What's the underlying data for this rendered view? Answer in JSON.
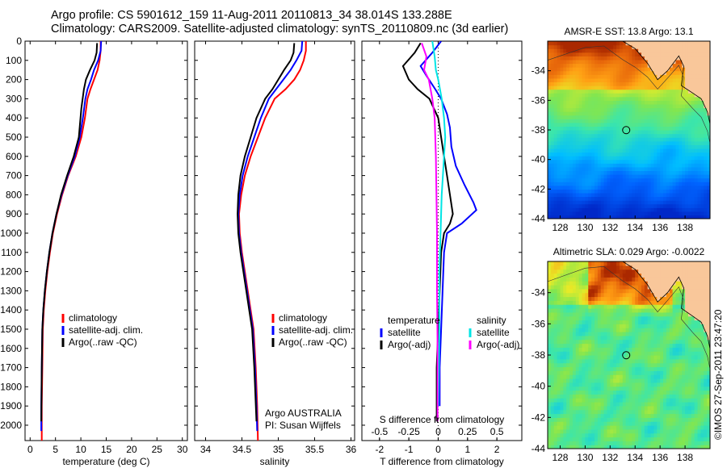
{
  "header": {
    "line1": "Argo profile: CS 5901612_159 11-Aug-2011 20110813_34 38.014S 133.288E",
    "line2": "Climatology: CARS2009. Satellite-adjusted climatology: synTS_20110809.nc (3d earlier)"
  },
  "side_text": "©IMOS 27-Sep-2011 23:47:20",
  "colors": {
    "climatology": "#ff0000",
    "satellite": "#0000ff",
    "argo": "#000000",
    "satellite_salinity": "#00e5e5",
    "argo_salinity": "#ff00ff"
  },
  "chart_data": [
    {
      "type": "line",
      "xlabel": "temperature (deg C)",
      "ylabel": "",
      "xlim": [
        -1,
        31
      ],
      "ylim": [
        2080,
        0
      ],
      "xticks": [
        0,
        5,
        10,
        15,
        20,
        25,
        30
      ],
      "yticks": [
        0,
        100,
        200,
        300,
        400,
        500,
        600,
        700,
        800,
        900,
        1000,
        1100,
        1200,
        1300,
        1400,
        1500,
        1600,
        1700,
        1800,
        1900,
        2000
      ],
      "legend": {
        "position": "lower-middle",
        "entries": [
          "climatology",
          "satellite-adj. clim.",
          "Argo(..raw -QC)"
        ]
      },
      "series": [
        {
          "name": "climatology",
          "x": [
            13.9,
            13.9,
            13.7,
            13.3,
            12.6,
            11.9,
            11.3,
            10.8,
            10.1,
            9.0,
            7.5,
            6.3,
            5.3,
            4.5,
            3.9,
            3.4,
            3.0,
            2.7,
            2.5,
            2.4,
            2.3,
            2.3
          ],
          "y": [
            0,
            50,
            100,
            150,
            200,
            250,
            300,
            400,
            500,
            600,
            700,
            800,
            900,
            1000,
            1100,
            1200,
            1300,
            1400,
            1500,
            1700,
            1900,
            2080
          ]
        },
        {
          "name": "satellite-adj. clim.",
          "x": [
            14.0,
            13.9,
            13.4,
            12.6,
            12.0,
            11.3,
            10.9,
            10.4,
            9.8,
            8.8,
            7.4,
            6.2,
            5.2,
            4.4,
            3.8,
            3.3,
            2.9,
            2.6,
            2.4,
            2.3,
            2.2,
            2.2
          ],
          "y": [
            0,
            50,
            100,
            150,
            200,
            250,
            300,
            400,
            500,
            600,
            700,
            800,
            900,
            1000,
            1100,
            1200,
            1300,
            1400,
            1500,
            1700,
            1900,
            2030
          ]
        },
        {
          "name": "Argo(..raw -QC)",
          "x": [
            13.2,
            13.1,
            12.7,
            11.8,
            11.0,
            10.6,
            10.1,
            9.6,
            8.6,
            7.3,
            6.1,
            5.2,
            4.4,
            3.8,
            3.3,
            2.9,
            2.6,
            2.4,
            2.3,
            2.2
          ],
          "y": [
            10,
            60,
            100,
            150,
            200,
            250,
            350,
            500,
            600,
            700,
            800,
            900,
            1000,
            1100,
            1200,
            1300,
            1400,
            1500,
            1700,
            1980
          ]
        }
      ]
    },
    {
      "type": "line",
      "xlabel": "salinity",
      "ylabel": "",
      "xlim": [
        33.85,
        36.05
      ],
      "ylim": [
        2080,
        0
      ],
      "xticks": [
        34,
        34.5,
        35,
        35.5,
        36
      ],
      "legend": {
        "position": "lower-middle",
        "entries": [
          "climatology",
          "satellite-adj. clim.",
          "Argo(..raw -QC)"
        ]
      },
      "annotation": [
        "Argo AUSTRALIA",
        "PI: Susan Wijffels"
      ],
      "series": [
        {
          "name": "climatology",
          "x": [
            35.38,
            35.38,
            35.35,
            35.3,
            35.22,
            35.1,
            34.95,
            34.82,
            34.72,
            34.62,
            34.54,
            34.49,
            34.46,
            34.47,
            34.5,
            34.54,
            34.58,
            34.62,
            34.66,
            34.69,
            34.71,
            34.72
          ],
          "y": [
            0,
            50,
            100,
            150,
            200,
            250,
            300,
            400,
            500,
            600,
            700,
            800,
            900,
            1000,
            1100,
            1200,
            1300,
            1400,
            1500,
            1700,
            1900,
            2080
          ]
        },
        {
          "name": "satellite-adj. clim.",
          "x": [
            35.33,
            35.32,
            35.25,
            35.17,
            35.07,
            34.97,
            34.87,
            34.76,
            34.67,
            34.58,
            34.51,
            34.47,
            34.45,
            34.46,
            34.49,
            34.53,
            34.57,
            34.61,
            34.65,
            34.68,
            34.7,
            34.71
          ],
          "y": [
            0,
            50,
            100,
            150,
            200,
            250,
            300,
            400,
            500,
            600,
            700,
            800,
            900,
            1000,
            1100,
            1200,
            1300,
            1400,
            1500,
            1700,
            1900,
            2030
          ]
        },
        {
          "name": "Argo(..raw -QC)",
          "x": [
            35.22,
            35.21,
            35.17,
            35.08,
            35.0,
            34.92,
            34.82,
            34.7,
            34.62,
            34.54,
            34.48,
            34.45,
            34.44,
            34.45,
            34.48,
            34.52,
            34.56,
            34.6,
            34.64,
            34.67,
            34.7
          ],
          "y": [
            10,
            60,
            100,
            150,
            200,
            250,
            300,
            400,
            500,
            600,
            700,
            800,
            900,
            1000,
            1100,
            1200,
            1300,
            1400,
            1500,
            1700,
            1980
          ]
        }
      ]
    },
    {
      "type": "line",
      "xlabel": "T difference from climatology",
      "x2label": "S difference from climatology",
      "ylabel": "",
      "xlim": [
        -2.6,
        2.85
      ],
      "x2lim": [
        -0.65,
        0.7125
      ],
      "ylim": [
        2080,
        0
      ],
      "xticks": [
        -2,
        -1,
        0,
        1,
        2
      ],
      "x2ticks": [
        -0.5,
        -0.25,
        0,
        0.25,
        0.5
      ],
      "x2ticklabels": [
        "-0.5",
        "-0.25",
        "0",
        "0.25",
        "0.5"
      ],
      "legend": {
        "position": "lower",
        "groups": [
          {
            "title": "temperature",
            "entries": [
              "satellite",
              "Argo(-adj)"
            ]
          },
          {
            "title": "salinity",
            "entries": [
              "satellite",
              "Argo(-adj)"
            ]
          }
        ]
      },
      "series": [
        {
          "name": "temperature satellite",
          "x": [
            0.1,
            -0.2,
            -0.6,
            -0.4,
            -0.1,
            0.1,
            0.3,
            0.4,
            0.45,
            0.6,
            0.9,
            1.2,
            1.3,
            0.8,
            0.3,
            0.2,
            0.15,
            0.1,
            0.05,
            0.05
          ],
          "y": [
            0,
            60,
            130,
            180,
            250,
            300,
            380,
            450,
            550,
            650,
            750,
            840,
            880,
            950,
            1000,
            1100,
            1300,
            1500,
            1700,
            1900
          ]
        },
        {
          "name": "temperature Argo(-adj)",
          "x": [
            -0.6,
            -0.8,
            -1.2,
            -1.0,
            -0.7,
            -0.3,
            0.0,
            0.1,
            0.2,
            0.3,
            0.4,
            0.5,
            0.4,
            0.2,
            0.1,
            0.05,
            0.0,
            -0.05,
            -0.05
          ],
          "y": [
            10,
            60,
            130,
            200,
            250,
            300,
            400,
            500,
            600,
            700,
            800,
            900,
            950,
            1000,
            1100,
            1300,
            1500,
            1700,
            1980
          ]
        },
        {
          "name": "salinity satellite",
          "x": [
            -0.05,
            -0.03,
            -0.02,
            0.0,
            0.03,
            0.05,
            0.06,
            0.05,
            0.04,
            0.03,
            0.02,
            0.01,
            0.01,
            0.0
          ],
          "y": [
            0,
            80,
            150,
            200,
            300,
            400,
            500,
            600,
            700,
            800,
            1000,
            1200,
            1500,
            1900
          ]
        },
        {
          "name": "salinity Argo(-adj)",
          "x": [
            -0.14,
            -0.1,
            -0.12,
            -0.08,
            -0.05,
            -0.03,
            -0.02,
            -0.015,
            -0.01,
            -0.01,
            -0.005,
            -0.005
          ],
          "y": [
            10,
            80,
            150,
            200,
            300,
            400,
            600,
            800,
            1000,
            1300,
            1600,
            1980
          ]
        }
      ]
    },
    {
      "type": "heatmap",
      "title": "AMSR-E SST: 13.8 Argo: 13.1",
      "xlim": [
        127,
        140
      ],
      "ylim": [
        -44,
        -32
      ],
      "xticks": [
        128,
        130,
        132,
        134,
        136,
        138
      ],
      "yticks": [
        -34,
        -36,
        -38,
        -40,
        -42,
        -44
      ],
      "marker": {
        "lon": 133.288,
        "lat": -38.014
      }
    },
    {
      "type": "heatmap",
      "title": "Altimetric SLA: 0.029 Argo: -0.0022",
      "xlim": [
        127,
        140
      ],
      "ylim": [
        -44,
        -32
      ],
      "xticks": [
        128,
        130,
        132,
        134,
        136,
        138
      ],
      "yticks": [
        -34,
        -36,
        -38,
        -40,
        -42,
        -44
      ],
      "marker": {
        "lon": 133.288,
        "lat": -38.014
      }
    }
  ]
}
